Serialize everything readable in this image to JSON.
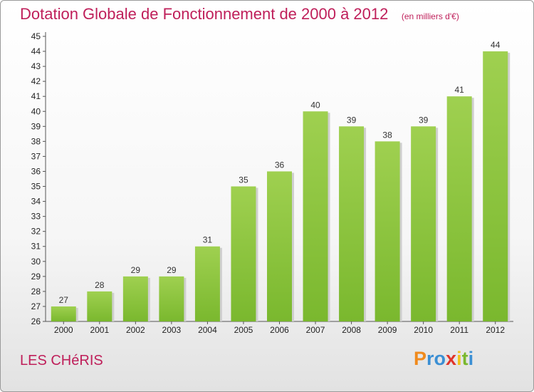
{
  "chart_data": {
    "type": "bar",
    "title": "Dotation Globale de Fonctionnement de 2000 à 2012",
    "subtitle": "(en milliers d'€)",
    "categories": [
      "2000",
      "2001",
      "2002",
      "2003",
      "2004",
      "2005",
      "2006",
      "2007",
      "2008",
      "2009",
      "2010",
      "2011",
      "2012"
    ],
    "values": [
      27,
      28,
      29,
      29,
      31,
      35,
      36,
      40,
      39,
      38,
      39,
      41,
      44
    ],
    "ylim": [
      26,
      45
    ],
    "yticks": [
      26,
      27,
      28,
      29,
      30,
      31,
      32,
      33,
      34,
      35,
      36,
      37,
      38,
      39,
      40,
      41,
      42,
      43,
      44,
      45
    ],
    "grid": false,
    "bar_color": "#7ab82e",
    "bar_color_light": "#9fd050"
  },
  "commune": "LES CHéRIS",
  "logo": {
    "letters": [
      "P",
      "r",
      "o",
      "x",
      "i",
      "t",
      "i"
    ],
    "colors": [
      "#f08a1c",
      "#3b8fd4",
      "#3b8fd4",
      "#e0342a",
      "#f0c41c",
      "#7ab82e",
      "#3b8fd4"
    ]
  },
  "colors": {
    "title": "#bf1f5a"
  }
}
